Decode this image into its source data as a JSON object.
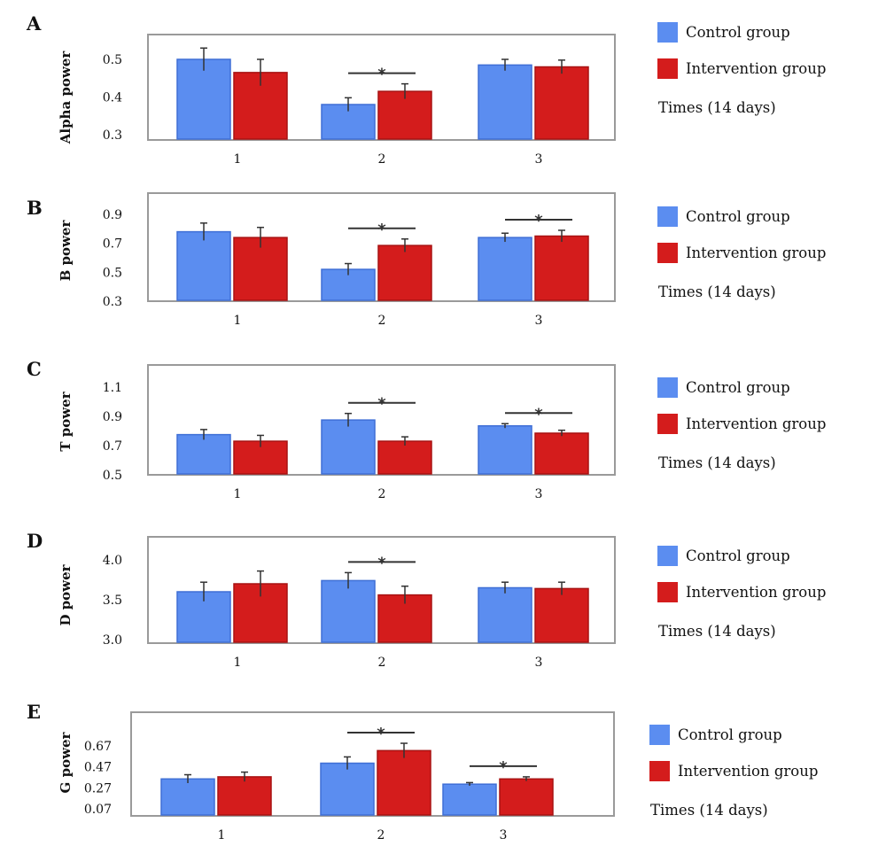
{
  "colors": {
    "control": "#5b8df0",
    "intervention": "#d41c1c",
    "frame": "#9a9a9a"
  },
  "legend": {
    "control": "Control group",
    "intervention": "Intervention group",
    "times": "Times (14 days)"
  },
  "chart_data": [
    {
      "type": "bar",
      "panel": "A",
      "ylabel": "Alpha power",
      "yticks": [
        "0.5",
        "0.4",
        "0.3"
      ],
      "ylim": [
        0.28,
        0.57
      ],
      "categories": [
        "1",
        "2",
        "3"
      ],
      "series": [
        {
          "name": "Control group",
          "values": [
            0.5,
            0.38,
            0.485
          ],
          "errors": [
            0.03,
            0.018,
            0.015
          ]
        },
        {
          "name": "Intervention group",
          "values": [
            0.465,
            0.415,
            0.48
          ],
          "errors": [
            0.035,
            0.02,
            0.018
          ]
        }
      ],
      "significant": [
        2
      ]
    },
    {
      "type": "bar",
      "panel": "B",
      "ylabel": "B power",
      "yticks": [
        "0.9",
        "0.7",
        "0.5",
        "0.3"
      ],
      "ylim": [
        0.3,
        0.97
      ],
      "categories": [
        "1",
        "2",
        "3"
      ],
      "series": [
        {
          "name": "Control group",
          "values": [
            0.78,
            0.52,
            0.74
          ],
          "errors": [
            0.06,
            0.04,
            0.03
          ]
        },
        {
          "name": "Intervention group",
          "values": [
            0.74,
            0.685,
            0.75
          ],
          "errors": [
            0.07,
            0.045,
            0.04
          ]
        }
      ],
      "significant": [
        2,
        3
      ]
    },
    {
      "type": "bar",
      "panel": "C",
      "ylabel": "T power",
      "yticks": [
        "1.1",
        "0.9",
        "0.7",
        "0.5"
      ],
      "ylim": [
        0.5,
        1.15
      ],
      "categories": [
        "1",
        "2",
        "3"
      ],
      "series": [
        {
          "name": "Control group",
          "values": [
            0.775,
            0.875,
            0.835
          ],
          "errors": [
            0.035,
            0.045,
            0.015
          ]
        },
        {
          "name": "Intervention group",
          "values": [
            0.73,
            0.73,
            0.785
          ],
          "errors": [
            0.04,
            0.03,
            0.02
          ]
        }
      ],
      "significant": [
        2,
        3
      ]
    },
    {
      "type": "bar",
      "panel": "D",
      "ylabel": "D power",
      "yticks": [
        "4.0",
        "3.5",
        "3.0"
      ],
      "ylim": [
        2.9,
        4.1
      ],
      "categories": [
        "1",
        "2",
        "3"
      ],
      "series": [
        {
          "name": "Control group",
          "values": [
            3.6,
            3.74,
            3.65
          ],
          "errors": [
            0.12,
            0.1,
            0.07
          ]
        },
        {
          "name": "Intervention group",
          "values": [
            3.7,
            3.56,
            3.64
          ],
          "errors": [
            0.16,
            0.11,
            0.08
          ]
        }
      ],
      "significant": [
        2
      ]
    },
    {
      "type": "bar",
      "panel": "E",
      "ylabel": "G power",
      "yticks": [
        "0.67",
        "0.47",
        "0.27",
        "0.07"
      ],
      "ylim": [
        0.07,
        0.81
      ],
      "categories": [
        "1",
        "2",
        "3"
      ],
      "series": [
        {
          "name": "Control group",
          "values": [
            0.355,
            0.505,
            0.305
          ],
          "errors": [
            0.04,
            0.06,
            0.015
          ]
        },
        {
          "name": "Intervention group",
          "values": [
            0.375,
            0.625,
            0.355
          ],
          "errors": [
            0.045,
            0.07,
            0.02
          ]
        }
      ],
      "significant": [
        2,
        3
      ]
    }
  ]
}
